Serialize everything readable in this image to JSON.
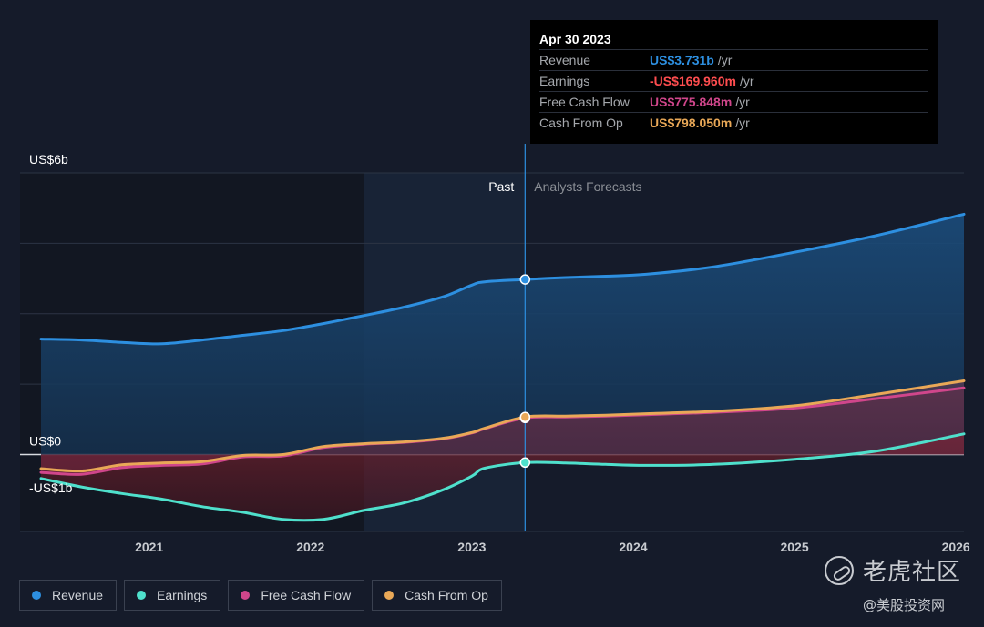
{
  "chart_data": {
    "type": "area",
    "y_unit": "US$ billions",
    "y_ticks": [
      {
        "value": 6,
        "label": "US$6b"
      },
      {
        "value": 0,
        "label": "US$0"
      },
      {
        "value": -1,
        "label": "-US$1b"
      }
    ],
    "ylim": [
      -1.55,
      6
    ],
    "xlim": [
      2020.2,
      2026.05
    ],
    "x_ticks": [
      {
        "value": 2021,
        "label": "2021"
      },
      {
        "value": 2022,
        "label": "2022"
      },
      {
        "value": 2023,
        "label": "2023"
      },
      {
        "value": 2024,
        "label": "2024"
      },
      {
        "value": 2025,
        "label": "2025"
      },
      {
        "value": 2026,
        "label": "2026"
      }
    ],
    "grid": true,
    "divider_x": 2023.33,
    "highlight_start_x": 2022.33,
    "region_labels": {
      "past": "Past",
      "forecast": "Analysts Forecasts"
    },
    "series": [
      {
        "name": "Revenue",
        "color": "#2d8fe0",
        "fill": true,
        "x": [
          2020.33,
          2020.58,
          2020.83,
          2021.08,
          2021.33,
          2021.58,
          2021.83,
          2022.08,
          2022.33,
          2022.58,
          2022.83,
          2023.0,
          2023.08,
          2023.33,
          2023.58,
          2023.83,
          2024.08,
          2024.5,
          2025.0,
          2025.5,
          2026.05
        ],
        "values": [
          2.46,
          2.44,
          2.39,
          2.36,
          2.44,
          2.54,
          2.64,
          2.79,
          2.96,
          3.14,
          3.37,
          3.61,
          3.68,
          3.73,
          3.77,
          3.8,
          3.84,
          4.0,
          4.31,
          4.66,
          5.12
        ]
      },
      {
        "name": "Earnings",
        "color": "#4fe0cc",
        "fill": true,
        "x": [
          2020.33,
          2020.58,
          2020.83,
          2021.08,
          2021.33,
          2021.58,
          2021.83,
          2022.08,
          2022.33,
          2022.58,
          2022.83,
          2023.0,
          2023.08,
          2023.33,
          2023.58,
          2023.83,
          2024.08,
          2024.5,
          2025.0,
          2025.5,
          2026.05
        ],
        "values": [
          -0.51,
          -0.69,
          -0.83,
          -0.95,
          -1.11,
          -1.23,
          -1.38,
          -1.38,
          -1.19,
          -1.03,
          -0.74,
          -0.46,
          -0.29,
          -0.17,
          -0.18,
          -0.21,
          -0.23,
          -0.21,
          -0.1,
          0.07,
          0.44
        ]
      },
      {
        "name": "Free Cash Flow",
        "color": "#d0468b",
        "fill": true,
        "x": [
          2020.33,
          2020.58,
          2020.83,
          2021.08,
          2021.33,
          2021.58,
          2021.83,
          2022.08,
          2022.33,
          2022.58,
          2022.83,
          2023.0,
          2023.08,
          2023.33,
          2023.58,
          2023.83,
          2024.08,
          2024.5,
          2025.0,
          2025.5,
          2026.05
        ],
        "values": [
          -0.38,
          -0.42,
          -0.28,
          -0.23,
          -0.2,
          -0.05,
          -0.03,
          0.15,
          0.22,
          0.26,
          0.34,
          0.46,
          0.55,
          0.78,
          0.8,
          0.82,
          0.85,
          0.9,
          0.99,
          1.19,
          1.42
        ]
      },
      {
        "name": "Cash From Op",
        "color": "#e9a857",
        "fill": false,
        "x": [
          2020.33,
          2020.58,
          2020.83,
          2021.08,
          2021.33,
          2021.58,
          2021.83,
          2022.08,
          2022.33,
          2022.58,
          2022.83,
          2023.0,
          2023.08,
          2023.33,
          2023.58,
          2023.83,
          2024.08,
          2024.5,
          2025.0,
          2025.5,
          2026.05
        ],
        "values": [
          -0.3,
          -0.35,
          -0.22,
          -0.18,
          -0.15,
          -0.02,
          0.0,
          0.17,
          0.23,
          0.27,
          0.35,
          0.47,
          0.56,
          0.8,
          0.82,
          0.84,
          0.87,
          0.92,
          1.04,
          1.28,
          1.57
        ]
      }
    ],
    "marker_x": 2023.33
  },
  "tooltip": {
    "date": "Apr 30 2023",
    "rows": [
      {
        "label": "Revenue",
        "value": "US$3.731b",
        "unit": "/yr",
        "color": "#2d8fe0"
      },
      {
        "label": "Earnings",
        "value": "-US$169.960m",
        "unit": "/yr",
        "color": "#ff4d4f"
      },
      {
        "label": "Free Cash Flow",
        "value": "US$775.848m",
        "unit": "/yr",
        "color": "#d0468b"
      },
      {
        "label": "Cash From Op",
        "value": "US$798.050m",
        "unit": "/yr",
        "color": "#e9a857"
      }
    ]
  },
  "legend": [
    {
      "label": "Revenue",
      "color": "#2d8fe0"
    },
    {
      "label": "Earnings",
      "color": "#4fe0cc"
    },
    {
      "label": "Free Cash Flow",
      "color": "#d0468b"
    },
    {
      "label": "Cash From Op",
      "color": "#e9a857"
    }
  ],
  "watermark": {
    "title": "老虎社区",
    "subtitle": "@美股投资网",
    "icon": "tiger-logo-icon"
  }
}
